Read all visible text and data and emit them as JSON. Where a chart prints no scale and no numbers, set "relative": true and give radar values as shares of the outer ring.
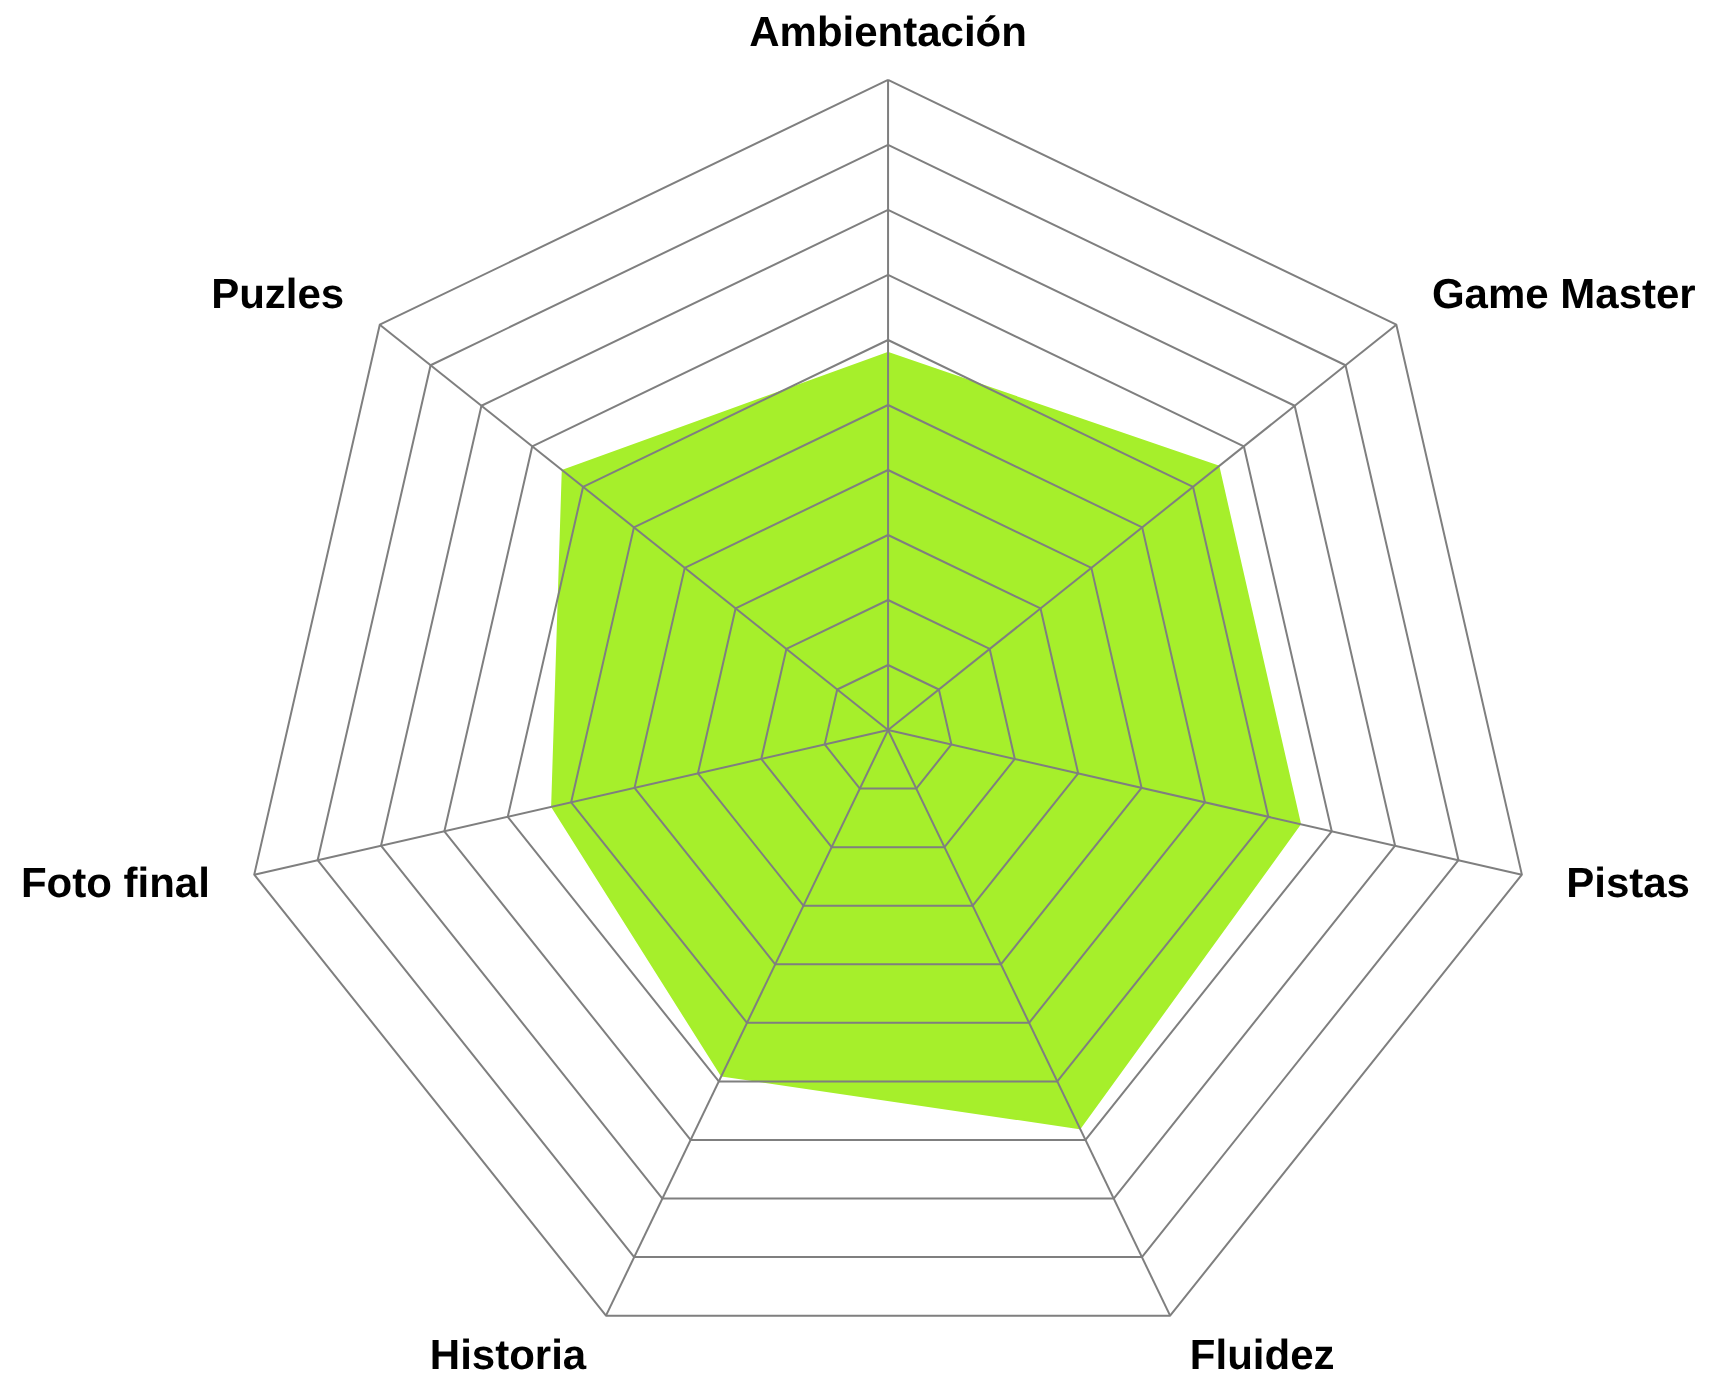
{
  "chart_data": {
    "type": "radar",
    "relative": true,
    "grid": true,
    "categories": [
      "Ambientación",
      "Game Master",
      "Pistas",
      "Fluidez",
      "Historia",
      "Foto final",
      "Puzles"
    ],
    "series": [
      {
        "color": "#a6ef2b",
        "values": [
          0.58,
          0.65,
          0.65,
          0.68,
          0.59,
          0.53,
          0.64
        ]
      }
    ]
  }
}
